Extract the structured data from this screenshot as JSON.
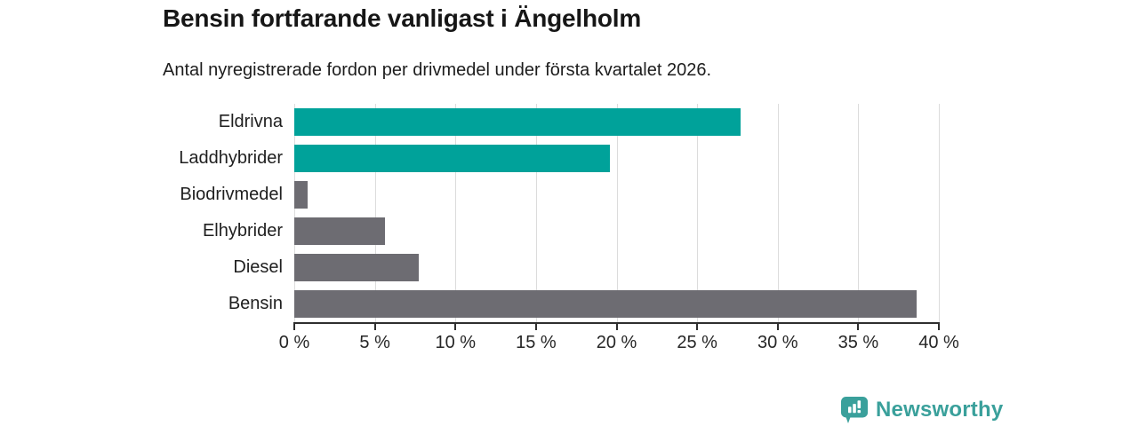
{
  "header": {
    "title": "Bensin fortfarande vanligast i Ängelholm",
    "subtitle": "Antal nyregistrerade fordon per drivmedel under första kvartalet 2026."
  },
  "chart_data": {
    "type": "bar",
    "orientation": "horizontal",
    "title": "Bensin fortfarande vanligast i Ängelholm",
    "subtitle": "Antal nyregistrerade fordon per drivmedel under första kvartalet 2026.",
    "categories": [
      "Eldrivna",
      "Laddhybrider",
      "Biodrivmedel",
      "Elhybrider",
      "Diesel",
      "Bensin"
    ],
    "values": [
      27.7,
      19.6,
      0.8,
      5.6,
      7.7,
      38.6
    ],
    "unit": "%",
    "xlim": [
      0,
      40
    ],
    "tick_values": [
      0,
      5,
      10,
      15,
      20,
      25,
      30,
      35,
      40
    ],
    "tick_labels": [
      "0 %",
      "5 %",
      "10 %",
      "15 %",
      "20 %",
      "25 %",
      "30 %",
      "35 %",
      "40 %"
    ],
    "bar_colors": [
      "#00a29a",
      "#00a29a",
      "#6d6c72",
      "#6d6c72",
      "#6d6c72",
      "#6d6c72"
    ],
    "grid": true,
    "legend": false
  },
  "colors": {
    "accent_teal": "#00a29a",
    "neutral_gray": "#6d6c72",
    "gridline": "#dcdcdc",
    "axis": "#2e2e2e",
    "logo_teal": "#3aa09b"
  },
  "footer": {
    "brand": "Newsworthy"
  }
}
